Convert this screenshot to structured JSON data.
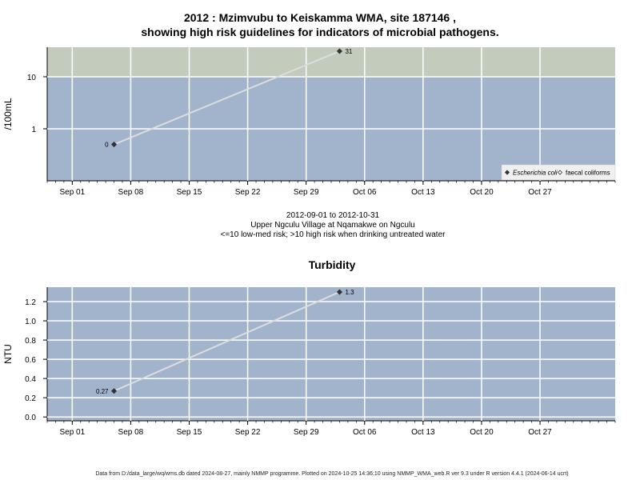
{
  "chart_data": [
    {
      "type": "line",
      "title": "2012 : Mzimvubu to Keiskamma WMA, site 187146 ,",
      "subtitle": "showing high risk guidelines for indicators of microbial pathogens.",
      "ylabel": "/100mL",
      "yscale": "log",
      "ylim": [
        0.1,
        37
      ],
      "xlim": [
        "2012-08-29",
        "2012-11-05"
      ],
      "x_ticks": [
        "Sep 01",
        "Sep 08",
        "Sep 15",
        "Sep 22",
        "Sep 29",
        "Oct 06",
        "Oct 13",
        "Oct 20",
        "Oct 27"
      ],
      "y_ticks": [
        "1",
        "10"
      ],
      "bands": [
        {
          "from": 10,
          "to": 37,
          "color": "#c3cbbd"
        },
        {
          "from": 0.1,
          "to": 10,
          "color": "#a2b3cc"
        }
      ],
      "grid": true,
      "legend_position": "bottom-right",
      "series": [
        {
          "name": "Escherichia coli",
          "marker": "filled-diamond",
          "color": "#333333",
          "points": [
            {
              "x": "2012-09-06",
              "y": 0.5,
              "label": "0"
            },
            {
              "x": "2012-10-03",
              "y": 31,
              "label": "31"
            }
          ]
        },
        {
          "name": "faecal coliforms",
          "marker": "open-diamond",
          "color": "#333333",
          "points": []
        }
      ],
      "caption": [
        "2012-09-01 to 2012-10-31",
        "Upper Ngculu Village at Nqamakwe on Ngculu",
        "<=10 low-med risk; >10 high risk when drinking untreated water"
      ]
    },
    {
      "type": "line",
      "title": "Turbidity",
      "ylabel": "NTU",
      "yscale": "linear",
      "ylim": [
        -0.04,
        1.35
      ],
      "xlim": [
        "2012-08-29",
        "2012-11-05"
      ],
      "x_ticks": [
        "Sep 01",
        "Sep 08",
        "Sep 15",
        "Sep 22",
        "Sep 29",
        "Oct 06",
        "Oct 13",
        "Oct 20",
        "Oct 27"
      ],
      "y_ticks": [
        "0.0",
        "0.2",
        "0.4",
        "0.6",
        "0.8",
        "1.0",
        "1.2"
      ],
      "background": "#a2b3cc",
      "grid": true,
      "series": [
        {
          "name": "",
          "marker": "filled-diamond",
          "color": "#333333",
          "points": [
            {
              "x": "2012-09-06",
              "y": 0.27,
              "label": "0.27"
            },
            {
              "x": "2012-10-03",
              "y": 1.3,
              "label": "1.3"
            }
          ]
        }
      ]
    }
  ],
  "footer": "Data from D:/data_large/wq/wms.db dated 2024-08-27, mainly NMMP programme. Plotted on 2024-10-25 14:36:10 using NMMP_WMA_web.R ver 9.3 under R version 4.4.1 (2024-06-14 ucrt)"
}
